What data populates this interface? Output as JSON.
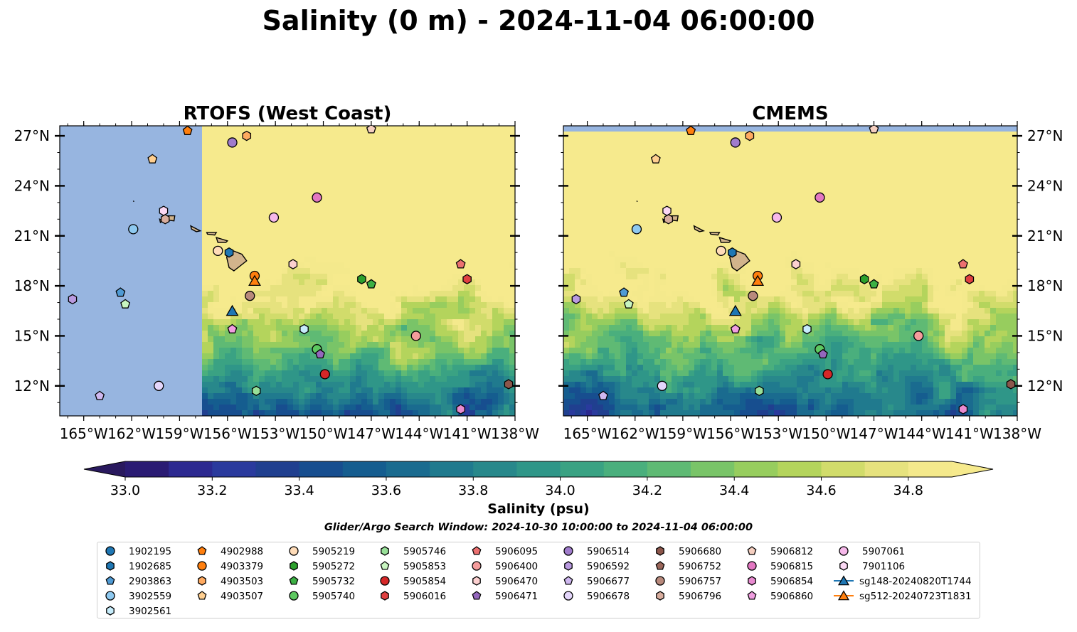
{
  "figure": {
    "title": "Salinity (0 m) - 2024-11-04 06:00:00",
    "search_window": "Glider/Argo Search Window: 2024-10-30 10:00:00 to 2024-11-04 06:00:00"
  },
  "chart_data": [
    {
      "type": "heatmap",
      "title": "RTOFS (West Coast)",
      "x_ticks": [
        "165°W",
        "162°W",
        "159°W",
        "156°W",
        "153°W",
        "150°W",
        "147°W",
        "144°W",
        "141°W",
        "138°W"
      ],
      "y_ticks": [
        "12°N",
        "15°N",
        "18°N",
        "21°N",
        "24°N",
        "27°N"
      ],
      "xlim": [
        -166.5,
        -138
      ],
      "ylim": [
        10.2,
        27.6
      ],
      "y_tick_side": "left",
      "no_data_region": {
        "lon_max": -157.5
      },
      "colors": {
        "ocean_nodata": "#97b5e0",
        "land": "#d2b48c"
      }
    },
    {
      "type": "heatmap",
      "title": "CMEMS",
      "x_ticks": [
        "165°W",
        "162°W",
        "159°W",
        "156°W",
        "153°W",
        "150°W",
        "147°W",
        "144°W",
        "141°W",
        "138°W"
      ],
      "y_ticks": [
        "12°N",
        "15°N",
        "18°N",
        "21°N",
        "24°N",
        "27°N"
      ],
      "xlim": [
        -166.5,
        -138
      ],
      "ylim": [
        10.2,
        27.6
      ],
      "y_tick_side": "right",
      "no_data_region": {
        "lat_min": 27.1
      },
      "colors": {
        "ocean_nodata": "#97b5e0",
        "land": "#d2b48c"
      }
    }
  ],
  "colorbar": {
    "label": "Salinity (psu)",
    "min": 33.0,
    "max": 34.9,
    "step": 0.1,
    "tick_values": [
      33.0,
      33.2,
      33.4,
      33.6,
      33.8,
      34.0,
      34.2,
      34.4,
      34.6,
      34.8
    ],
    "tick_labels": [
      "33.0",
      "33.2",
      "33.4",
      "33.6",
      "33.8",
      "34.0",
      "34.2",
      "34.4",
      "34.6",
      "34.8"
    ],
    "extend": "both",
    "under_color": "#29195e",
    "over_color": "#f6ea8d",
    "bin_colors": [
      "#2a1b73",
      "#2c2990",
      "#2a3a9d",
      "#203f8f",
      "#174e8f",
      "#155d8f",
      "#1a6b8f",
      "#207a8e",
      "#28888b",
      "#2f9688",
      "#3aa283",
      "#4aaf7d",
      "#5fba74",
      "#79c468",
      "#97cd5e",
      "#b4d45c",
      "#d1dc6b",
      "#e6e27e",
      "#f4e98c"
    ]
  },
  "legend": {
    "entries": [
      {
        "label": "1902195",
        "marker": "circle",
        "color": "#1f77b4"
      },
      {
        "label": "1902685",
        "marker": "hexagon",
        "color": "#1f77b4"
      },
      {
        "label": "2903863",
        "marker": "pentagon",
        "color": "#4f9ad4"
      },
      {
        "label": "3902559",
        "marker": "circle",
        "color": "#8ec9f0"
      },
      {
        "label": "3902561",
        "marker": "hexagon",
        "color": "#c6ecfb"
      },
      {
        "label": "4902988",
        "marker": "pentagon",
        "color": "#ff7f0e"
      },
      {
        "label": "4903379",
        "marker": "circle",
        "color": "#ff7f0e"
      },
      {
        "label": "4903503",
        "marker": "hexagon",
        "color": "#ffaa60"
      },
      {
        "label": "4903507",
        "marker": "pentagon",
        "color": "#ffcf90"
      },
      {
        "label": "5905219",
        "marker": "circle",
        "color": "#ffdcb8"
      },
      {
        "label": "5905272",
        "marker": "hexagon",
        "color": "#2ca02c"
      },
      {
        "label": "5905732",
        "marker": "pentagon",
        "color": "#3cb044"
      },
      {
        "label": "5905740",
        "marker": "circle",
        "color": "#5dc860"
      },
      {
        "label": "5905746",
        "marker": "hexagon",
        "color": "#98e098"
      },
      {
        "label": "5905853",
        "marker": "pentagon",
        "color": "#c8f5c0"
      },
      {
        "label": "5905854",
        "marker": "circle",
        "color": "#d62728"
      },
      {
        "label": "5906016",
        "marker": "hexagon",
        "color": "#e04040"
      },
      {
        "label": "5906095",
        "marker": "pentagon",
        "color": "#ec7070"
      },
      {
        "label": "5906400",
        "marker": "circle",
        "color": "#f59c9c"
      },
      {
        "label": "5906470",
        "marker": "hexagon",
        "color": "#fcd0d0"
      },
      {
        "label": "5906471",
        "marker": "pentagon",
        "color": "#9467bd"
      },
      {
        "label": "5906514",
        "marker": "circle",
        "color": "#a07ccc"
      },
      {
        "label": "5906592",
        "marker": "hexagon",
        "color": "#b99ae0"
      },
      {
        "label": "5906677",
        "marker": "pentagon",
        "color": "#cfb8f0"
      },
      {
        "label": "5906678",
        "marker": "circle",
        "color": "#e4d6fb"
      },
      {
        "label": "5906680",
        "marker": "hexagon",
        "color": "#8c564b"
      },
      {
        "label": "5906752",
        "marker": "pentagon",
        "color": "#9a665a"
      },
      {
        "label": "5906757",
        "marker": "circle",
        "color": "#b8897c"
      },
      {
        "label": "5906796",
        "marker": "hexagon",
        "color": "#d8ad9e"
      },
      {
        "label": "5906812",
        "marker": "pentagon",
        "color": "#f5cfc0"
      },
      {
        "label": "5906815",
        "marker": "circle",
        "color": "#e377c2"
      },
      {
        "label": "5906854",
        "marker": "hexagon",
        "color": "#e88ad0"
      },
      {
        "label": "5906860",
        "marker": "pentagon",
        "color": "#f09ee0"
      },
      {
        "label": "5907061",
        "marker": "circle",
        "color": "#f6b8ea"
      },
      {
        "label": "7901106",
        "marker": "hexagon",
        "color": "#fbd8f4"
      },
      {
        "label": "sg148-20240820T1744",
        "marker": "triangle-line",
        "color": "#1f77b4"
      },
      {
        "label": "sg512-20240723T1831",
        "marker": "triangle-line",
        "color": "#ff7f0e"
      }
    ]
  },
  "floats": [
    {
      "id": "1902685",
      "lon": -155.9,
      "lat": 20.0
    },
    {
      "id": "2903863",
      "lon": -162.7,
      "lat": 17.6
    },
    {
      "id": "3902559",
      "lon": -161.9,
      "lat": 21.4
    },
    {
      "id": "3902561",
      "lon": -151.2,
      "lat": 15.4
    },
    {
      "id": "4902988",
      "lon": -158.5,
      "lat": 27.3
    },
    {
      "id": "4903379",
      "lon": -154.3,
      "lat": 18.6
    },
    {
      "id": "4903503",
      "lon": -154.8,
      "lat": 27.0
    },
    {
      "id": "4903507",
      "lon": -160.7,
      "lat": 25.6
    },
    {
      "id": "5905219",
      "lon": -156.6,
      "lat": 20.1
    },
    {
      "id": "5905272",
      "lon": -147.6,
      "lat": 18.4
    },
    {
      "id": "5905732",
      "lon": -147.0,
      "lat": 18.1
    },
    {
      "id": "5905740",
      "lon": -150.4,
      "lat": 14.2
    },
    {
      "id": "5905746",
      "lon": -154.2,
      "lat": 11.7
    },
    {
      "id": "5905853",
      "lon": -162.4,
      "lat": 16.9
    },
    {
      "id": "5905854",
      "lon": -149.9,
      "lat": 12.7
    },
    {
      "id": "5906016",
      "lon": -141.0,
      "lat": 18.4
    },
    {
      "id": "5906095",
      "lon": -141.4,
      "lat": 19.3
    },
    {
      "id": "5906400",
      "lon": -144.2,
      "lat": 15.0
    },
    {
      "id": "5906470",
      "lon": -151.9,
      "lat": 19.3
    },
    {
      "id": "5906471",
      "lon": -150.2,
      "lat": 13.9
    },
    {
      "id": "5906514",
      "lon": -155.7,
      "lat": 26.6
    },
    {
      "id": "5906592",
      "lon": -165.7,
      "lat": 17.2
    },
    {
      "id": "5906677",
      "lon": -164.0,
      "lat": 11.4
    },
    {
      "id": "5906678",
      "lon": -160.3,
      "lat": 12.0
    },
    {
      "id": "5906680",
      "lon": -138.4,
      "lat": 12.1
    },
    {
      "id": "5906757",
      "lon": -154.6,
      "lat": 17.4
    },
    {
      "id": "5906796",
      "lon": -159.9,
      "lat": 22.0
    },
    {
      "id": "5906812",
      "lon": -147.0,
      "lat": 27.4
    },
    {
      "id": "5906815",
      "lon": -150.4,
      "lat": 23.3
    },
    {
      "id": "5906854",
      "lon": -141.4,
      "lat": 10.6
    },
    {
      "id": "5906860",
      "lon": -155.7,
      "lat": 15.4
    },
    {
      "id": "5907061",
      "lon": -153.1,
      "lat": 22.1
    },
    {
      "id": "7901106",
      "lon": -160.0,
      "lat": 22.5
    }
  ],
  "gliders": [
    {
      "id": "sg148-20240820T1744",
      "lon": -155.7,
      "lat": 16.5
    },
    {
      "id": "sg512-20240723T1831",
      "lon": -154.3,
      "lat": 18.3
    }
  ]
}
